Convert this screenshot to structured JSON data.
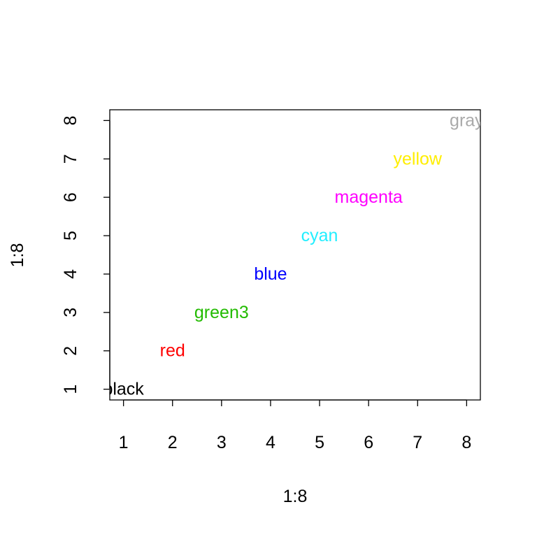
{
  "chart_data": {
    "type": "scatter",
    "title": "",
    "xlabel": "1:8",
    "ylabel": "1:8",
    "xlim": [
      0.72,
      8.28
    ],
    "ylim": [
      0.72,
      8.28
    ],
    "grid": false,
    "x_ticks": [
      1,
      2,
      3,
      4,
      5,
      6,
      7,
      8
    ],
    "y_ticks": [
      1,
      2,
      3,
      4,
      5,
      6,
      7,
      8
    ],
    "points": [
      {
        "x": 1,
        "y": 1,
        "label": "black",
        "color": "#000000"
      },
      {
        "x": 2,
        "y": 2,
        "label": "red",
        "color": "#ff0000"
      },
      {
        "x": 3,
        "y": 3,
        "label": "green3",
        "color": "#22bb00"
      },
      {
        "x": 4,
        "y": 4,
        "label": "blue",
        "color": "#0000ff"
      },
      {
        "x": 5,
        "y": 5,
        "label": "cyan",
        "color": "#22eeff"
      },
      {
        "x": 6,
        "y": 6,
        "label": "magenta",
        "color": "#ff00ff"
      },
      {
        "x": 7,
        "y": 7,
        "label": "yellow",
        "color": "#ffee00"
      },
      {
        "x": 8,
        "y": 8,
        "label": "gray",
        "color": "#aaaaaa"
      }
    ]
  }
}
